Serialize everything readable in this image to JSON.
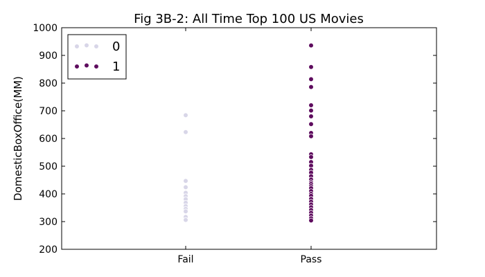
{
  "chart_data": {
    "type": "scatter",
    "title": "Fig 3B-2: All Time Top 100 US Movies",
    "xlabel": "",
    "ylabel": "DomesticBoxOffice(MM)",
    "categories": [
      "Fail",
      "Pass"
    ],
    "ylim": [
      200,
      1000
    ],
    "yticks": [
      200,
      300,
      400,
      500,
      600,
      700,
      800,
      900,
      1000
    ],
    "grid": false,
    "legend_position": "top-left",
    "series": [
      {
        "name": "0",
        "color": "#d8d6e8",
        "points": [
          {
            "x": "Fail",
            "y": 684
          },
          {
            "x": "Fail",
            "y": 623
          },
          {
            "x": "Fail",
            "y": 447
          },
          {
            "x": "Fail",
            "y": 424
          },
          {
            "x": "Fail",
            "y": 404
          },
          {
            "x": "Fail",
            "y": 392
          },
          {
            "x": "Fail",
            "y": 381
          },
          {
            "x": "Fail",
            "y": 368
          },
          {
            "x": "Fail",
            "y": 356
          },
          {
            "x": "Fail",
            "y": 346
          },
          {
            "x": "Fail",
            "y": 337
          },
          {
            "x": "Fail",
            "y": 317
          },
          {
            "x": "Fail",
            "y": 306
          },
          {
            "x": "Pass",
            "y": 431
          },
          {
            "x": "Pass",
            "y": 425
          },
          {
            "x": "Pass",
            "y": 419
          },
          {
            "x": "Pass",
            "y": 413
          },
          {
            "x": "Pass",
            "y": 407
          },
          {
            "x": "Pass",
            "y": 398
          },
          {
            "x": "Pass",
            "y": 389
          },
          {
            "x": "Pass",
            "y": 378
          },
          {
            "x": "Pass",
            "y": 366
          },
          {
            "x": "Pass",
            "y": 356
          },
          {
            "x": "Pass",
            "y": 346
          },
          {
            "x": "Pass",
            "y": 336
          },
          {
            "x": "Pass",
            "y": 326
          },
          {
            "x": "Pass",
            "y": 316
          },
          {
            "x": "Pass",
            "y": 308
          }
        ]
      },
      {
        "name": "1",
        "color": "#5e0c5e",
        "points": [
          {
            "x": "Pass",
            "y": 936
          },
          {
            "x": "Pass",
            "y": 858
          },
          {
            "x": "Pass",
            "y": 814
          },
          {
            "x": "Pass",
            "y": 786
          },
          {
            "x": "Pass",
            "y": 720
          },
          {
            "x": "Pass",
            "y": 701
          },
          {
            "x": "Pass",
            "y": 680
          },
          {
            "x": "Pass",
            "y": 652
          },
          {
            "x": "Pass",
            "y": 620
          },
          {
            "x": "Pass",
            "y": 608
          },
          {
            "x": "Pass",
            "y": 543
          },
          {
            "x": "Pass",
            "y": 533
          },
          {
            "x": "Pass",
            "y": 515
          },
          {
            "x": "Pass",
            "y": 502
          },
          {
            "x": "Pass",
            "y": 487
          },
          {
            "x": "Pass",
            "y": 477
          },
          {
            "x": "Pass",
            "y": 464
          },
          {
            "x": "Pass",
            "y": 452
          },
          {
            "x": "Pass",
            "y": 442
          },
          {
            "x": "Pass",
            "y": 436
          },
          {
            "x": "Pass",
            "y": 428
          },
          {
            "x": "Pass",
            "y": 421
          },
          {
            "x": "Pass",
            "y": 410
          },
          {
            "x": "Pass",
            "y": 400
          },
          {
            "x": "Pass",
            "y": 393
          },
          {
            "x": "Pass",
            "y": 382
          },
          {
            "x": "Pass",
            "y": 372
          },
          {
            "x": "Pass",
            "y": 362
          },
          {
            "x": "Pass",
            "y": 352
          },
          {
            "x": "Pass",
            "y": 342
          },
          {
            "x": "Pass",
            "y": 332
          },
          {
            "x": "Pass",
            "y": 322
          },
          {
            "x": "Pass",
            "y": 312
          },
          {
            "x": "Pass",
            "y": 304
          }
        ]
      }
    ]
  }
}
